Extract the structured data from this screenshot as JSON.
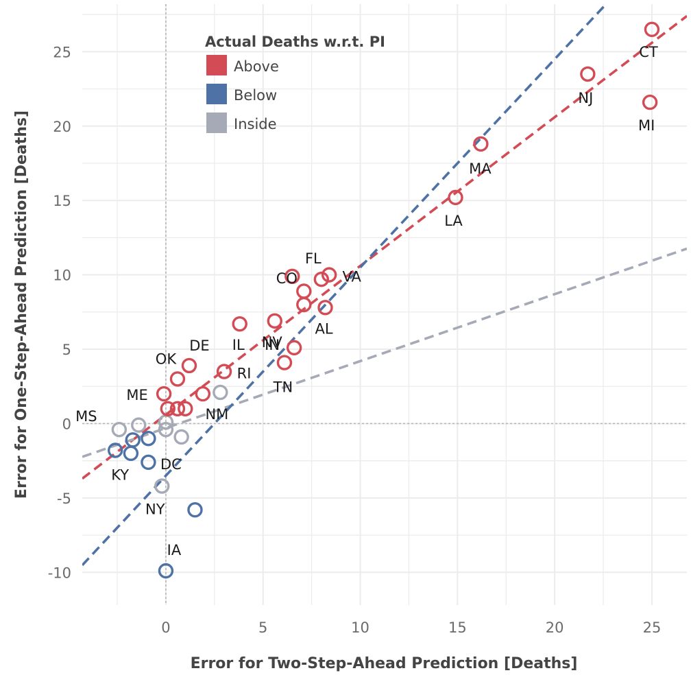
{
  "chart_data": {
    "type": "scatter",
    "xlabel": "Error for Two-Step-Ahead Prediction [Deaths]",
    "ylabel": "Error for One-Step-Ahead Prediction [Deaths]",
    "xlim": [
      -4.3,
      26.8
    ],
    "ylim": [
      -12.2,
      28.2
    ],
    "xticks": [
      0,
      5,
      10,
      15,
      20,
      25
    ],
    "yticks": [
      -10,
      -5,
      0,
      5,
      10,
      15,
      20,
      25
    ],
    "grid": true,
    "legend": {
      "title": "Actual Deaths w.r.t. PI",
      "placement": "top-left",
      "entries": [
        {
          "label": "Above",
          "color": "#d24b55"
        },
        {
          "label": "Below",
          "color": "#4e72a6"
        },
        {
          "label": "Inside",
          "color": "#a5aab6"
        }
      ]
    },
    "colors": {
      "Above": "#d24b55",
      "Below": "#4e72a6",
      "Inside": "#a5aab6"
    },
    "points": [
      {
        "x": 25.0,
        "y": 26.5,
        "group": "Above",
        "label": "CT"
      },
      {
        "x": 21.7,
        "y": 23.5,
        "group": "Above",
        "label": "NJ"
      },
      {
        "x": 24.9,
        "y": 21.6,
        "group": "Above",
        "label": "MI"
      },
      {
        "x": 16.2,
        "y": 18.8,
        "group": "Above",
        "label": "MA"
      },
      {
        "x": 14.9,
        "y": 15.2,
        "group": "Above",
        "label": "LA"
      },
      {
        "x": 6.5,
        "y": 9.9,
        "group": "Above",
        "label": "CO"
      },
      {
        "x": 8.0,
        "y": 9.7,
        "group": "Above",
        "label": "FL"
      },
      {
        "x": 8.4,
        "y": 10.0,
        "group": "Above",
        "label": "VA"
      },
      {
        "x": 7.1,
        "y": 8.9,
        "group": "Above",
        "label": ""
      },
      {
        "x": 7.1,
        "y": 8.0,
        "group": "Above",
        "label": ""
      },
      {
        "x": 8.2,
        "y": 7.8,
        "group": "Above",
        "label": "AL"
      },
      {
        "x": 5.6,
        "y": 6.9,
        "group": "Above",
        "label": "NV"
      },
      {
        "x": 3.8,
        "y": 6.7,
        "group": "Above",
        "label": "IL"
      },
      {
        "x": 6.6,
        "y": 5.1,
        "group": "Above",
        "label": "IN"
      },
      {
        "x": 6.1,
        "y": 4.1,
        "group": "Above",
        "label": "TN"
      },
      {
        "x": 1.2,
        "y": 3.9,
        "group": "Above",
        "label": "DE"
      },
      {
        "x": 3.0,
        "y": 3.5,
        "group": "Above",
        "label": "RI"
      },
      {
        "x": 0.6,
        "y": 3.0,
        "group": "Above",
        "label": "OK"
      },
      {
        "x": -0.1,
        "y": 2.0,
        "group": "Above",
        "label": "ME"
      },
      {
        "x": 1.9,
        "y": 2.0,
        "group": "Above",
        "label": ""
      },
      {
        "x": 0.1,
        "y": 1.0,
        "group": "Above",
        "label": ""
      },
      {
        "x": 0.6,
        "y": 1.0,
        "group": "Above",
        "label": ""
      },
      {
        "x": 1.0,
        "y": 1.0,
        "group": "Above",
        "label": ""
      },
      {
        "x": 2.8,
        "y": 2.1,
        "group": "Inside",
        "label": "NM"
      },
      {
        "x": -2.4,
        "y": -0.4,
        "group": "Inside",
        "label": "MS"
      },
      {
        "x": -1.4,
        "y": -0.1,
        "group": "Inside",
        "label": ""
      },
      {
        "x": 0.0,
        "y": 0.1,
        "group": "Inside",
        "label": ""
      },
      {
        "x": 0.0,
        "y": -0.4,
        "group": "Inside",
        "label": ""
      },
      {
        "x": 0.8,
        "y": -0.9,
        "group": "Inside",
        "label": ""
      },
      {
        "x": -0.2,
        "y": -4.2,
        "group": "Inside",
        "label": "NY"
      },
      {
        "x": -2.6,
        "y": -1.8,
        "group": "Below",
        "label": "KY"
      },
      {
        "x": -1.7,
        "y": -1.1,
        "group": "Below",
        "label": ""
      },
      {
        "x": -1.8,
        "y": -2.0,
        "group": "Below",
        "label": ""
      },
      {
        "x": -0.9,
        "y": -1.0,
        "group": "Below",
        "label": ""
      },
      {
        "x": -0.9,
        "y": -2.6,
        "group": "Below",
        "label": "DC"
      },
      {
        "x": 1.5,
        "y": -5.8,
        "group": "Below",
        "label": ""
      },
      {
        "x": 0.0,
        "y": -9.9,
        "group": "Below",
        "label": "IA"
      }
    ],
    "trend_lines": [
      {
        "group": "Above",
        "intercept": 0.6,
        "slope": 1.0
      },
      {
        "group": "Inside",
        "intercept": -0.3,
        "slope": 0.45
      },
      {
        "group": "Below",
        "intercept": -3.5,
        "slope": 1.4
      }
    ]
  }
}
